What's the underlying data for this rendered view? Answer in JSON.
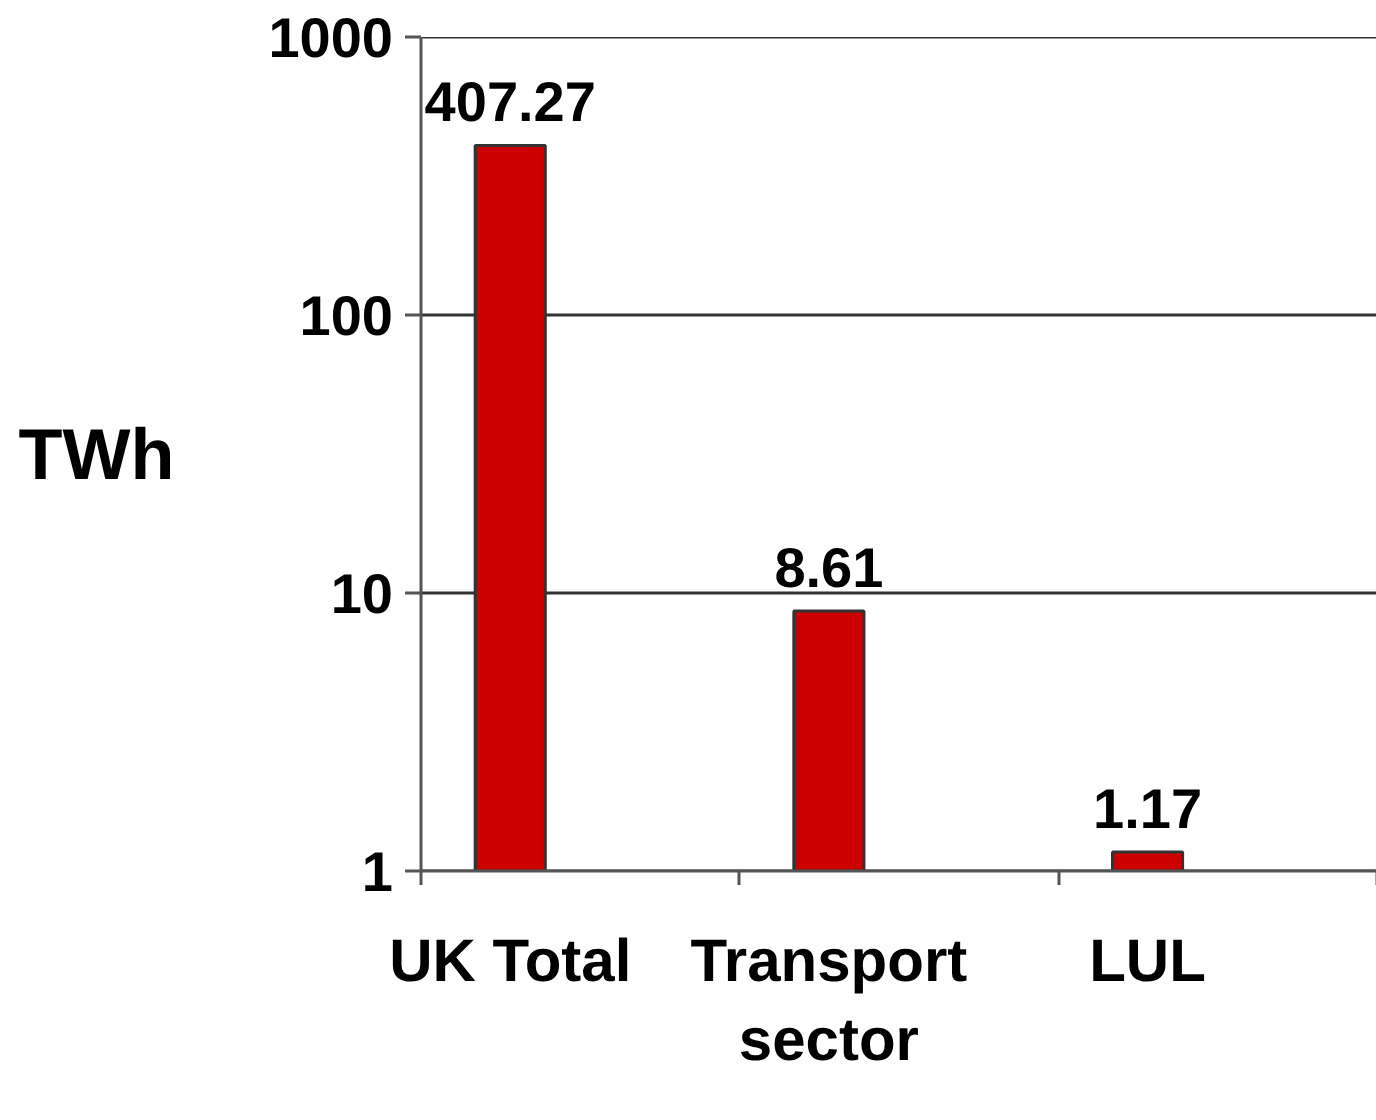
{
  "chart_data": {
    "type": "bar",
    "categories": [
      "UK Total",
      "Transport sector",
      "LUL"
    ],
    "values": [
      407.27,
      8.61,
      1.17
    ],
    "color": "#cc0000",
    "ylabel": "TWh",
    "ylim": [
      1,
      1000
    ],
    "yticks": [
      1,
      10,
      100,
      1000
    ],
    "log": true,
    "grid": "y",
    "data_labels": true
  }
}
